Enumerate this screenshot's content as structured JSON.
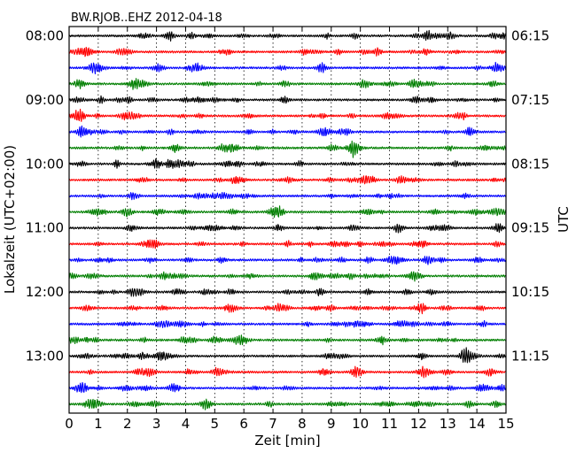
{
  "chart_data": {
    "type": "line",
    "title": "BW.RJOB..EHZ 2012-04-18",
    "xlabel": "Zeit  [min]",
    "ylabel_left": "Lokalzeit (UTC+02:00)",
    "ylabel_right": "UTC",
    "xlim": [
      0,
      15
    ],
    "x_ticks": [
      "0",
      "1",
      "2",
      "3",
      "4",
      "5",
      "6",
      "7",
      "8",
      "9",
      "10",
      "11",
      "12",
      "13",
      "14",
      "15"
    ],
    "y_ticks_left": [
      "08:00",
      "09:00",
      "10:00",
      "11:00",
      "12:00",
      "13:00"
    ],
    "y_ticks_right": [
      "06:15",
      "07:15",
      "08:15",
      "09:15",
      "10:15",
      "11:15"
    ],
    "grid": "vertical dotted lines at each minute",
    "trace_count": 24,
    "trace_interval_minutes": 15,
    "trace_colors": [
      "#000000",
      "#ff0000",
      "#0000ff",
      "#007f00"
    ],
    "trace_color_cycle": [
      "black",
      "red",
      "blue",
      "green"
    ]
  }
}
